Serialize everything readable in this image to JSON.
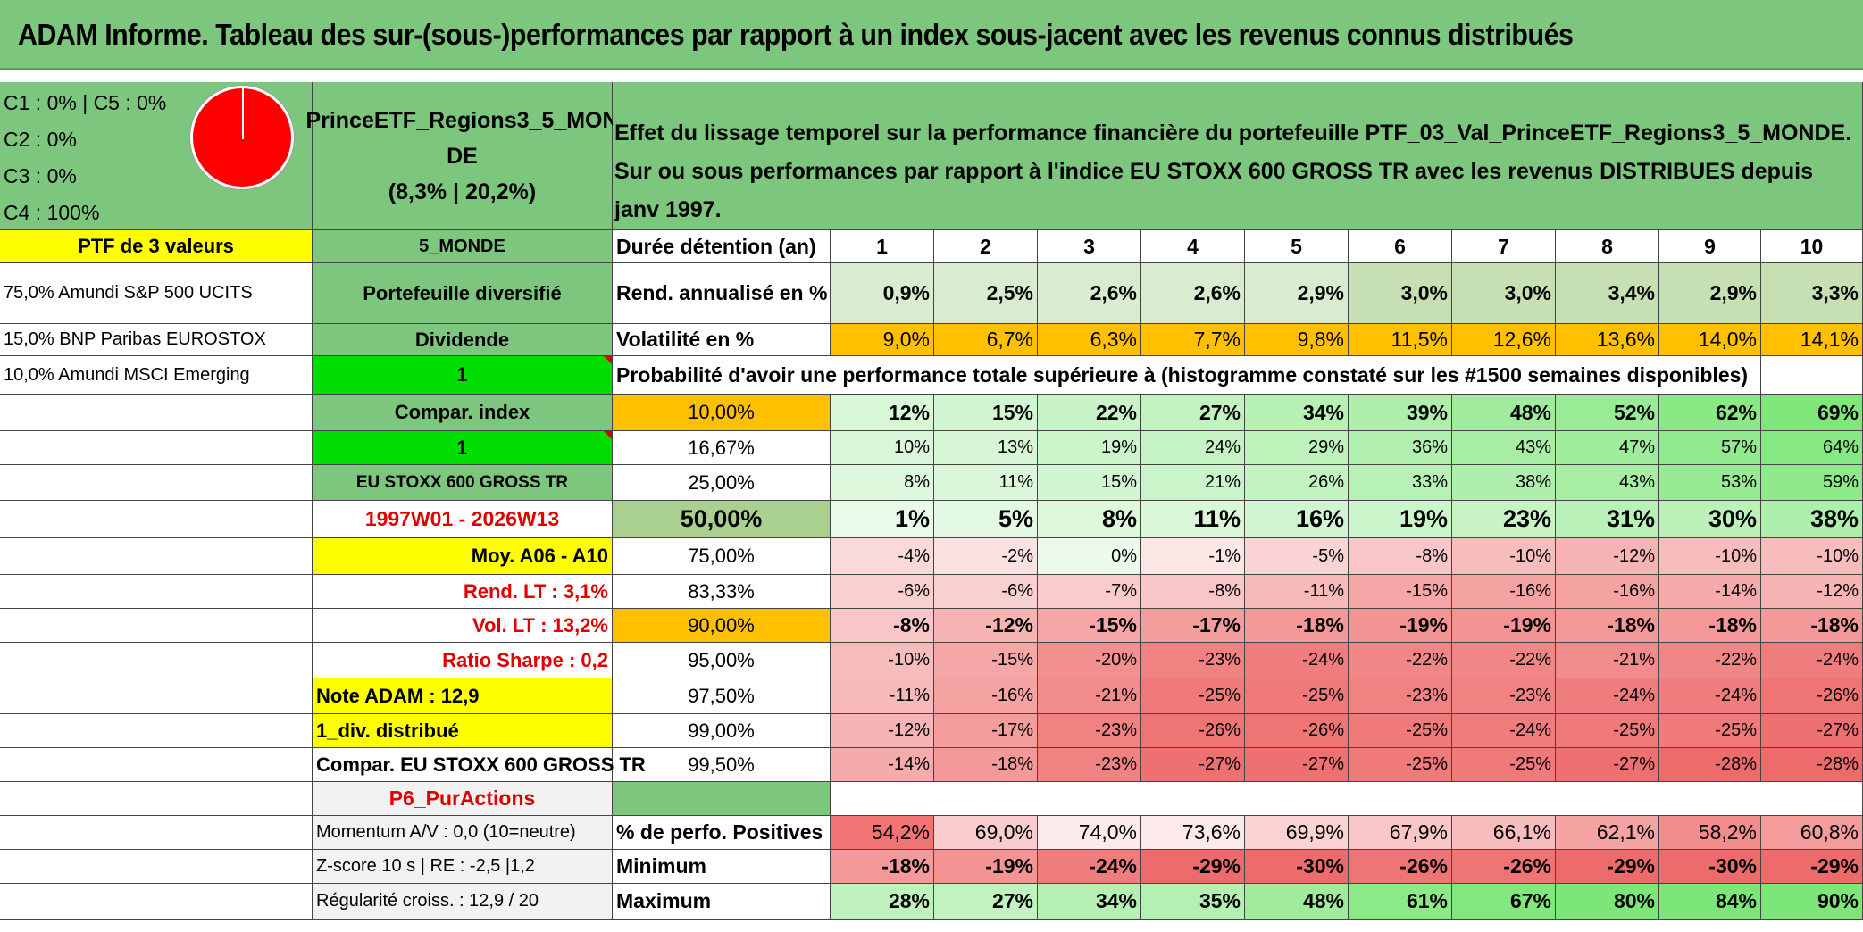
{
  "title": "ADAM Informe. Tableau des sur-(sous-)performances par rapport à un index sous-jacent avec les revenus connus distribués",
  "pie": {
    "legend": [
      "C1 : 0% | C5 : 0%",
      "C2 : 0%",
      "C3 : 0%",
      "C4 : 100%"
    ],
    "slices": [
      {
        "name": "C1",
        "pct": 0
      },
      {
        "name": "C2",
        "pct": 0
      },
      {
        "name": "C3",
        "pct": 0
      },
      {
        "name": "C4",
        "pct": 100
      },
      {
        "name": "C5",
        "pct": 0
      }
    ],
    "color": "#ff0000"
  },
  "portfolio": {
    "name_line1": "PrinceETF_Regions3_5_MON",
    "name_line2": "DE",
    "name_line3": "(8,3% | 20,2%)",
    "description": "Effet du lissage temporel sur la performance financière du portefeuille PTF_03_Val_PrinceETF_Regions3_5_MONDE. Sur ou sous performances par rapport à l'indice EU STOXX 600 GROSS TR avec les revenus DISTRIBUES depuis janv 1997."
  },
  "left": {
    "ptf_header": "PTF de 3 valeurs",
    "holdings": [
      "75,0% Amundi S&P 500 UCITS",
      "15,0% BNP Paribas EUROSTOX",
      "10,0% Amundi MSCI Emerging"
    ]
  },
  "mid": {
    "monde": "5_MONDE",
    "diversifie": "Portefeuille diversifié",
    "dividende": "Dividende",
    "val1": "1",
    "compar": "Compar. index",
    "val2": "1",
    "index": "EU STOXX 600 GROSS TR",
    "period": "1997W01 - 2026W13",
    "moy": "Moy. A06 - A10",
    "rend_lt": "Rend. LT : 3,1%",
    "vol_lt": "Vol. LT : 13,2%",
    "sharpe": "Ratio Sharpe : 0,2",
    "note": "Note ADAM : 12,9",
    "div": "1_div. distribué",
    "compar_index": "Compar. EU STOXX 600 GROSS TR",
    "p6": "P6_PurActions",
    "momentum": "Momentum A/V : 0,0 (10=neutre)",
    "zscore": "Z-score 10 s | RE : -2,5 |1,2",
    "regul": "Régularité croiss. : 12,9 / 20"
  },
  "table": {
    "duree_label": "Durée détention (an)",
    "years": [
      "1",
      "2",
      "3",
      "4",
      "5",
      "6",
      "7",
      "8",
      "9",
      "10"
    ],
    "rend_label": "Rend. annualisé en %",
    "rend": [
      "0,9%",
      "2,5%",
      "2,6%",
      "2,6%",
      "2,9%",
      "3,0%",
      "3,0%",
      "3,4%",
      "2,9%",
      "3,3%"
    ],
    "vol_label": "Volatilité en %",
    "vol": [
      "9,0%",
      "6,7%",
      "6,3%",
      "7,7%",
      "9,8%",
      "11,5%",
      "12,6%",
      "13,6%",
      "14,0%",
      "14,1%"
    ],
    "prob_label": "Probabilité d'avoir une performance totale supérieure à (histogramme constaté sur les #1500 semaines disponibles)",
    "quantile_rows": [
      {
        "q": "10,00%",
        "vals": [
          "12%",
          "15%",
          "22%",
          "27%",
          "34%",
          "39%",
          "48%",
          "52%",
          "62%",
          "69%"
        ]
      },
      {
        "q": "16,67%",
        "vals": [
          "10%",
          "13%",
          "19%",
          "24%",
          "29%",
          "36%",
          "43%",
          "47%",
          "57%",
          "64%"
        ]
      },
      {
        "q": "25,00%",
        "vals": [
          "8%",
          "11%",
          "15%",
          "21%",
          "26%",
          "33%",
          "38%",
          "43%",
          "53%",
          "59%"
        ]
      },
      {
        "q": "50,00%",
        "vals": [
          "1%",
          "5%",
          "8%",
          "11%",
          "16%",
          "19%",
          "23%",
          "31%",
          "30%",
          "38%"
        ]
      },
      {
        "q": "75,00%",
        "vals": [
          "-4%",
          "-2%",
          "0%",
          "-1%",
          "-5%",
          "-8%",
          "-10%",
          "-12%",
          "-10%",
          "-10%"
        ]
      },
      {
        "q": "83,33%",
        "vals": [
          "-6%",
          "-6%",
          "-7%",
          "-8%",
          "-11%",
          "-15%",
          "-16%",
          "-16%",
          "-14%",
          "-12%"
        ]
      },
      {
        "q": "90,00%",
        "vals": [
          "-8%",
          "-12%",
          "-15%",
          "-17%",
          "-18%",
          "-19%",
          "-19%",
          "-18%",
          "-18%",
          "-18%"
        ]
      },
      {
        "q": "95,00%",
        "vals": [
          "-10%",
          "-15%",
          "-20%",
          "-23%",
          "-24%",
          "-22%",
          "-22%",
          "-21%",
          "-22%",
          "-24%"
        ]
      },
      {
        "q": "97,50%",
        "vals": [
          "-11%",
          "-16%",
          "-21%",
          "-25%",
          "-25%",
          "-23%",
          "-23%",
          "-24%",
          "-24%",
          "-26%"
        ]
      },
      {
        "q": "99,00%",
        "vals": [
          "-12%",
          "-17%",
          "-23%",
          "-26%",
          "-26%",
          "-25%",
          "-24%",
          "-25%",
          "-25%",
          "-27%"
        ]
      },
      {
        "q": "99,50%",
        "vals": [
          "-14%",
          "-18%",
          "-23%",
          "-27%",
          "-27%",
          "-25%",
          "-25%",
          "-27%",
          "-28%",
          "-28%"
        ]
      }
    ],
    "pos_label": "% de perfo. Positives",
    "pos": [
      "54,2%",
      "69,0%",
      "74,0%",
      "73,6%",
      "69,9%",
      "67,9%",
      "66,1%",
      "62,1%",
      "58,2%",
      "60,8%"
    ],
    "min_label": "Minimum",
    "min": [
      "-18%",
      "-19%",
      "-24%",
      "-29%",
      "-30%",
      "-26%",
      "-26%",
      "-29%",
      "-30%",
      "-29%"
    ],
    "max_label": "Maximum",
    "max": [
      "28%",
      "27%",
      "34%",
      "35%",
      "48%",
      "61%",
      "67%",
      "80%",
      "84%",
      "90%"
    ]
  },
  "colors": {
    "header_green": "#7dc67d",
    "lime": "#00dd00",
    "yellow": "#ffff00",
    "orange": "#ffc000",
    "red_text": "#e00000"
  }
}
